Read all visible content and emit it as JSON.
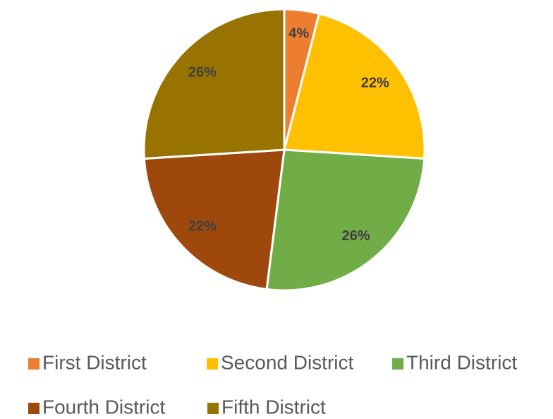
{
  "chart_data": {
    "type": "pie",
    "categories": [
      "First District",
      "Second District",
      "Third District",
      "Fourth District",
      "Fifth District"
    ],
    "values": [
      4,
      22,
      26,
      22,
      26
    ],
    "value_labels": [
      "4%",
      "22%",
      "26%",
      "22%",
      "26%"
    ],
    "colors": [
      "#ED7D31",
      "#FFC000",
      "#70AD47",
      "#9E480E",
      "#997300"
    ]
  }
}
